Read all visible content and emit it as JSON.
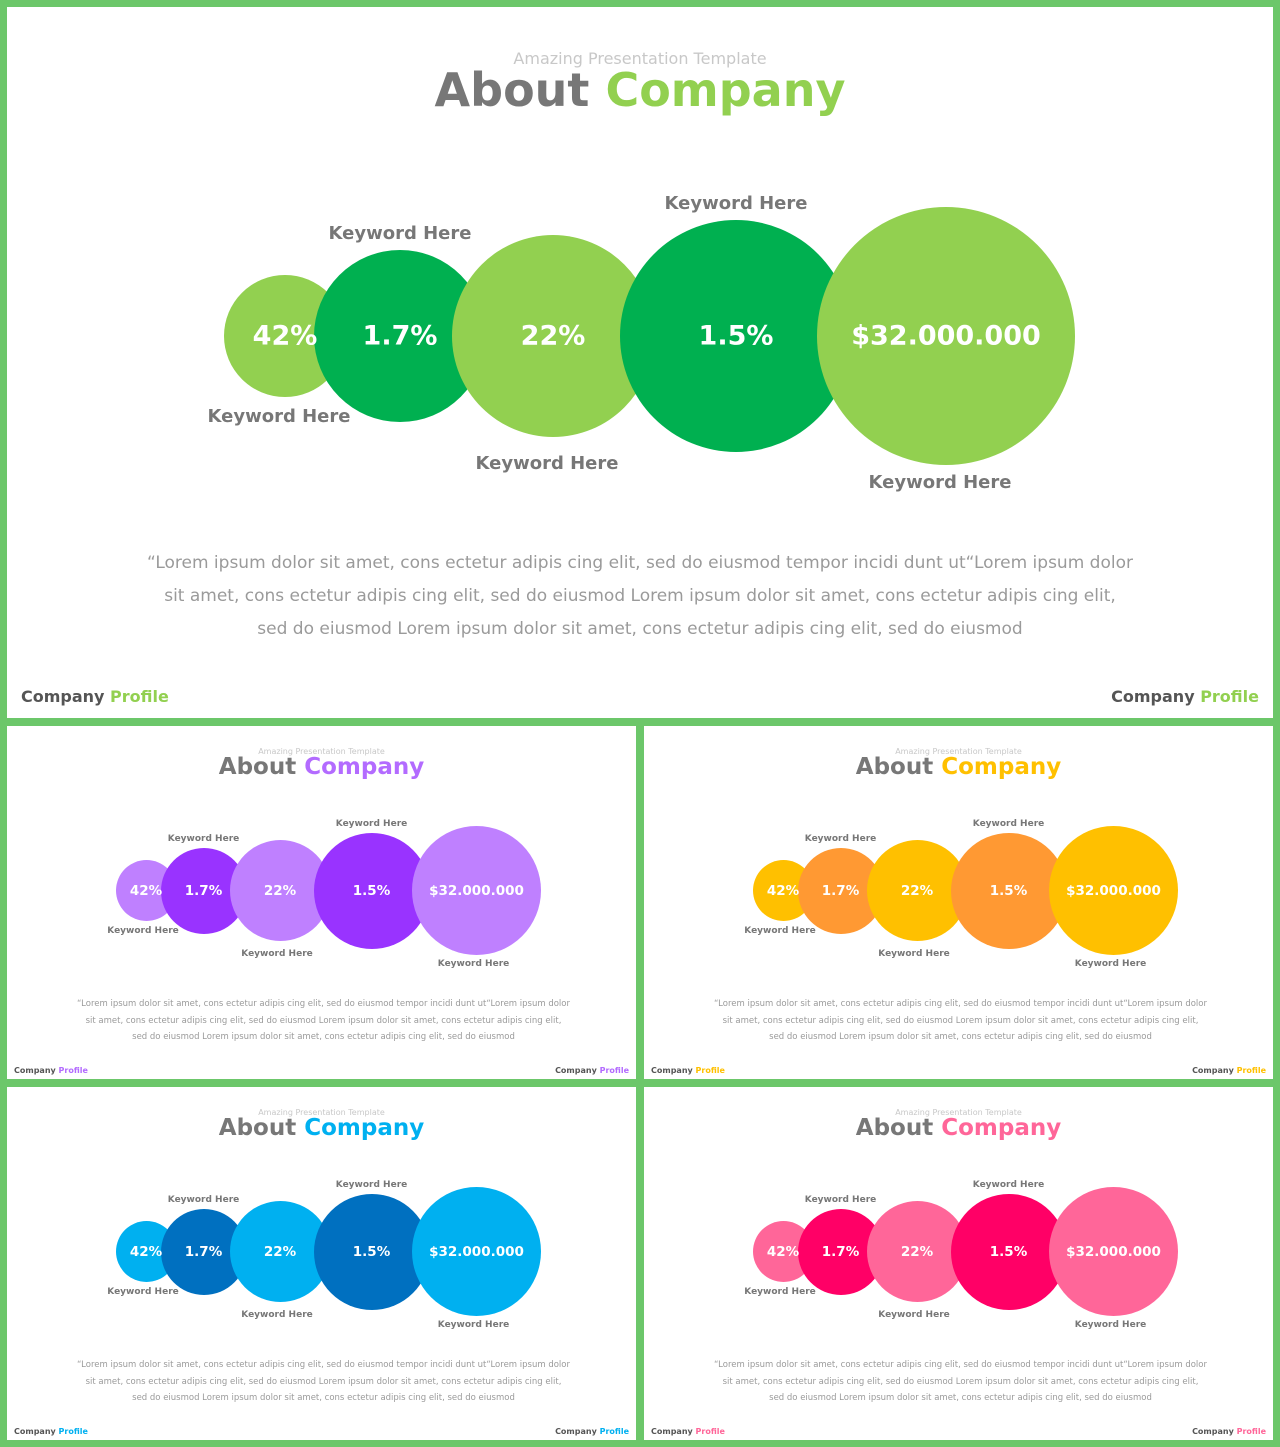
{
  "subtitle": "Amazing Presentation Template",
  "title_part1": "About",
  "title_part2": "Company",
  "description": "“Lorem ipsum dolor sit amet, cons ectetur adipis cing elit, sed do eiusmod tempor incidi dunt ut“Lorem ipsum dolor sit amet, cons ectetur adipis cing elit, sed do eiusmod Lorem ipsum dolor sit amet, cons ectetur adipis cing elit, sed do eiusmod Lorem ipsum dolor sit amet, cons ectetur adipis cing elit, sed do eiusmod",
  "footer_part1": "Company",
  "footer_part2": "Profile",
  "bubbles": [
    {
      "value": "42%",
      "keyword": "Keyword Here"
    },
    {
      "value": "1.7%",
      "keyword": "Keyword Here"
    },
    {
      "value": "22%",
      "keyword": "Keyword Here"
    },
    {
      "value": "1.5%",
      "keyword": "Keyword Here"
    },
    {
      "value": "$32.000.000",
      "keyword": "Keyword Here"
    }
  ],
  "themes": {
    "green": {
      "light": "#92d050",
      "dark": "#00b050",
      "accent": "#92d050"
    },
    "purple": {
      "light": "#bf80ff",
      "dark": "#9933ff",
      "accent": "#b36bff"
    },
    "orange": {
      "light": "#ffc000",
      "dark": "#ff9933",
      "accent": "#ffc000"
    },
    "blue": {
      "light": "#00b0f0",
      "dark": "#0070c0",
      "accent": "#00b0f0"
    },
    "pink": {
      "light": "#ff6699",
      "dark": "#ff0066",
      "accent": "#ff6699"
    }
  },
  "background": "#6cc76a"
}
